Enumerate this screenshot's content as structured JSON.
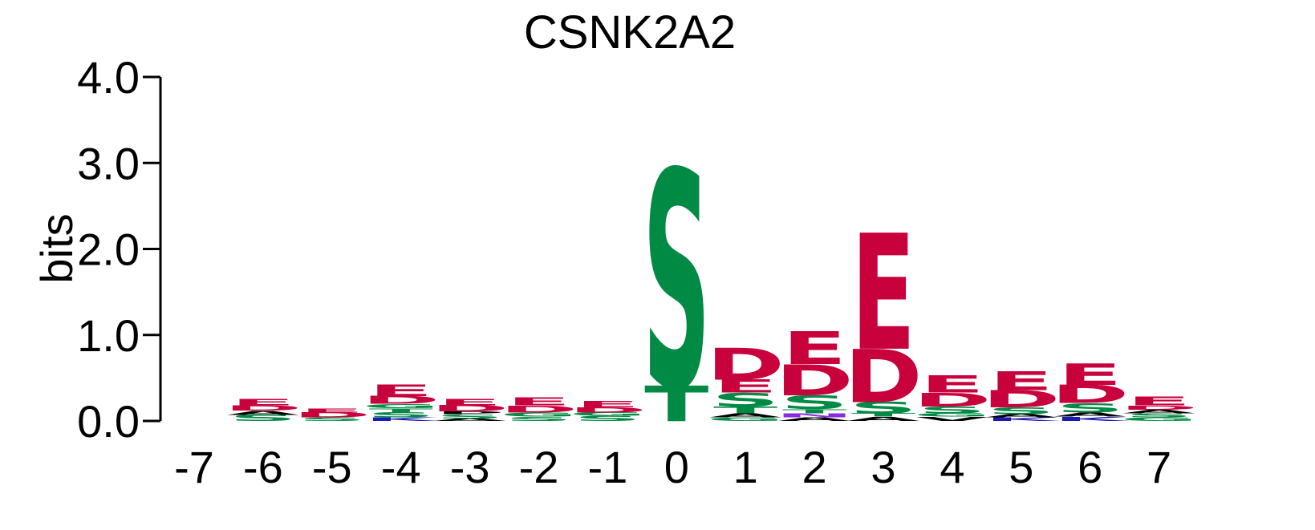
{
  "chart_data": {
    "type": "sequence-logo",
    "title": "CSNK2A2",
    "ylabel": "bits",
    "ylim": [
      0,
      4
    ],
    "y_ticks": [
      "0.0",
      "1.0",
      "2.0",
      "3.0",
      "4.0"
    ],
    "positions": [
      "-7",
      "-6",
      "-5",
      "-4",
      "-3",
      "-2",
      "-1",
      "0",
      "1",
      "2",
      "3",
      "4",
      "5",
      "6",
      "7"
    ],
    "colors": {
      "acidic": "#c8003c",
      "polar": "#008a44",
      "hydrophobic": "#000000",
      "basic": "#1a1ab4",
      "amide": "#8a2be2"
    },
    "stacks": [
      [],
      [
        {
          "aa": "S",
          "h": 0.07,
          "c": "polar"
        },
        {
          "aa": "A",
          "h": 0.05,
          "c": "hydrophobic"
        },
        {
          "aa": "D",
          "h": 0.06,
          "c": "acidic"
        },
        {
          "aa": "E",
          "h": 0.07,
          "c": "acidic"
        }
      ],
      [
        {
          "aa": "S",
          "h": 0.04,
          "c": "polar"
        },
        {
          "aa": "D",
          "h": 0.06,
          "c": "acidic"
        },
        {
          "aa": "E",
          "h": 0.05,
          "c": "acidic"
        }
      ],
      [
        {
          "aa": "K",
          "h": 0.04,
          "c": "basic"
        },
        {
          "aa": "S",
          "h": 0.06,
          "c": "polar"
        },
        {
          "aa": "T",
          "h": 0.05,
          "c": "polar"
        },
        {
          "aa": "G",
          "h": 0.05,
          "c": "polar"
        },
        {
          "aa": "D",
          "h": 0.09,
          "c": "acidic"
        },
        {
          "aa": "E",
          "h": 0.13,
          "c": "acidic"
        }
      ],
      [
        {
          "aa": "A",
          "h": 0.03,
          "c": "hydrophobic"
        },
        {
          "aa": "S",
          "h": 0.05,
          "c": "polar"
        },
        {
          "aa": "P",
          "h": 0.03,
          "c": "hydrophobic"
        },
        {
          "aa": "D",
          "h": 0.07,
          "c": "acidic"
        },
        {
          "aa": "E",
          "h": 0.07,
          "c": "acidic"
        }
      ],
      [
        {
          "aa": "S",
          "h": 0.05,
          "c": "polar"
        },
        {
          "aa": "G",
          "h": 0.05,
          "c": "polar"
        },
        {
          "aa": "D",
          "h": 0.08,
          "c": "acidic"
        },
        {
          "aa": "E",
          "h": 0.09,
          "c": "acidic"
        }
      ],
      [
        {
          "aa": "S",
          "h": 0.06,
          "c": "polar"
        },
        {
          "aa": "G",
          "h": 0.04,
          "c": "polar"
        },
        {
          "aa": "D",
          "h": 0.06,
          "c": "acidic"
        },
        {
          "aa": "E",
          "h": 0.07,
          "c": "acidic"
        }
      ],
      [
        {
          "aa": "T",
          "h": 0.41,
          "c": "polar"
        },
        {
          "aa": "S",
          "h": 2.52,
          "c": "polar"
        }
      ],
      [
        {
          "aa": "G",
          "h": 0.04,
          "c": "polar"
        },
        {
          "aa": "A",
          "h": 0.05,
          "c": "hydrophobic"
        },
        {
          "aa": "T",
          "h": 0.08,
          "c": "polar"
        },
        {
          "aa": "S",
          "h": 0.16,
          "c": "polar"
        },
        {
          "aa": "E",
          "h": 0.15,
          "c": "acidic"
        },
        {
          "aa": "D",
          "h": 0.37,
          "c": "acidic"
        }
      ],
      [
        {
          "aa": "A",
          "h": 0.04,
          "c": "hydrophobic"
        },
        {
          "aa": "N",
          "h": 0.05,
          "c": "amide"
        },
        {
          "aa": "T",
          "h": 0.05,
          "c": "polar"
        },
        {
          "aa": "S",
          "h": 0.16,
          "c": "polar"
        },
        {
          "aa": "D",
          "h": 0.36,
          "c": "acidic"
        },
        {
          "aa": "E",
          "h": 0.38,
          "c": "acidic"
        }
      ],
      [
        {
          "aa": "A",
          "h": 0.05,
          "c": "hydrophobic"
        },
        {
          "aa": "T",
          "h": 0.04,
          "c": "polar"
        },
        {
          "aa": "S",
          "h": 0.13,
          "c": "polar"
        },
        {
          "aa": "D",
          "h": 0.62,
          "c": "acidic"
        },
        {
          "aa": "E",
          "h": 1.35,
          "c": "acidic"
        }
      ],
      [
        {
          "aa": "V",
          "h": 0.05,
          "c": "hydrophobic"
        },
        {
          "aa": "G",
          "h": 0.04,
          "c": "polar"
        },
        {
          "aa": "S",
          "h": 0.08,
          "c": "polar"
        },
        {
          "aa": "D",
          "h": 0.16,
          "c": "acidic"
        },
        {
          "aa": "E",
          "h": 0.2,
          "c": "acidic"
        }
      ],
      [
        {
          "aa": "K",
          "h": 0.04,
          "c": "basic"
        },
        {
          "aa": "A",
          "h": 0.04,
          "c": "hydrophobic"
        },
        {
          "aa": "S",
          "h": 0.08,
          "c": "polar"
        },
        {
          "aa": "D",
          "h": 0.2,
          "c": "acidic"
        },
        {
          "aa": "E",
          "h": 0.22,
          "c": "acidic"
        }
      ],
      [
        {
          "aa": "K",
          "h": 0.05,
          "c": "basic"
        },
        {
          "aa": "A",
          "h": 0.05,
          "c": "hydrophobic"
        },
        {
          "aa": "S",
          "h": 0.11,
          "c": "polar"
        },
        {
          "aa": "D",
          "h": 0.21,
          "c": "acidic"
        },
        {
          "aa": "E",
          "h": 0.25,
          "c": "acidic"
        }
      ],
      [
        {
          "aa": "G",
          "h": 0.04,
          "c": "polar"
        },
        {
          "aa": "S",
          "h": 0.05,
          "c": "polar"
        },
        {
          "aa": "A",
          "h": 0.04,
          "c": "hydrophobic"
        },
        {
          "aa": "D",
          "h": 0.05,
          "c": "acidic"
        },
        {
          "aa": "E",
          "h": 0.1,
          "c": "acidic"
        }
      ]
    ]
  }
}
